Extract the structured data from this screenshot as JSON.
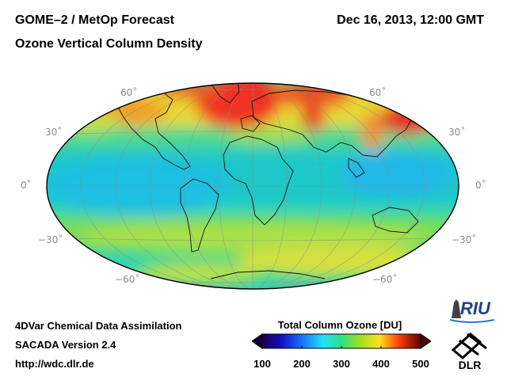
{
  "header": {
    "title_line1": "GOME–2 / MetOp Forecast",
    "title_line2": "Ozone Vertical Column Density",
    "datetime": "Dec 16, 2013, 12:00 GMT"
  },
  "map": {
    "projection": "Hammer-Aitoff",
    "lat_labels": {
      "n60": "60˚",
      "n30": "30˚",
      "eq": "0˚",
      "s30": "−30˚",
      "s60": "−60˚"
    }
  },
  "footer": {
    "line1": "4DVar Chemical Data Assimilation",
    "line2": "SACADA Version 2.4",
    "line3": "http://wdc.dlr.de"
  },
  "colorbar": {
    "title": "Total Column Ozone [DU]",
    "ticks": [
      "100",
      "200",
      "300",
      "400",
      "500"
    ],
    "min": 100,
    "max": 500
  },
  "logos": {
    "riu": "RIU",
    "dlr": "DLR"
  }
}
